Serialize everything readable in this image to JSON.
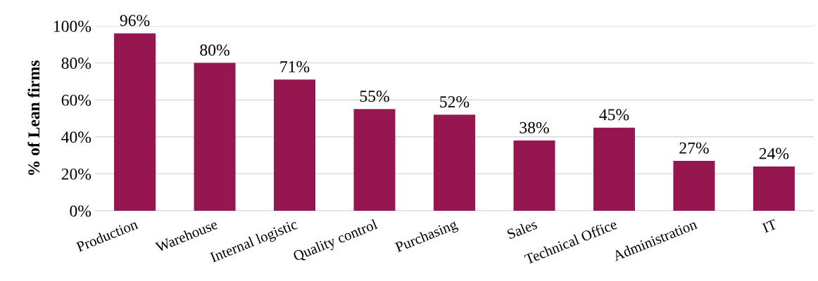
{
  "chart_data": {
    "type": "bar",
    "ylabel": "% of Lean firms",
    "categories": [
      "Production",
      "Warehouse",
      "Internal logistic",
      "Quality control",
      "Purchasing",
      "Sales",
      "Technical Office",
      "Administration",
      "IT"
    ],
    "values": [
      96,
      80,
      71,
      55,
      52,
      38,
      45,
      27,
      24
    ],
    "value_labels": [
      "96%",
      "80%",
      "71%",
      "55%",
      "52%",
      "38%",
      "45%",
      "27%",
      "24%"
    ],
    "color": "#961650",
    "ylim": [
      0,
      100
    ],
    "yticks": [
      {
        "value": 0,
        "label": "0%"
      },
      {
        "value": 20,
        "label": "20%"
      },
      {
        "value": 40,
        "label": "40%"
      },
      {
        "value": 60,
        "label": "60%"
      },
      {
        "value": 80,
        "label": "80%"
      },
      {
        "value": 100,
        "label": "100%"
      }
    ],
    "grid": "y",
    "legend": false
  }
}
